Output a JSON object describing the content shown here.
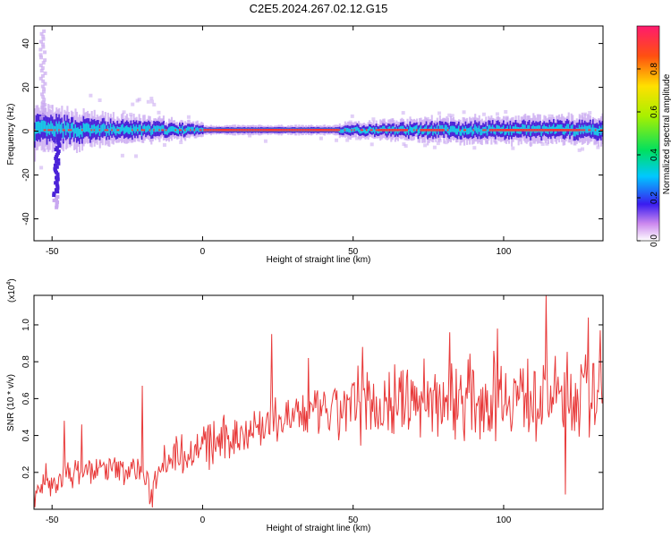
{
  "title": "C2E5.2024.267.02.12.G15",
  "chart_data": [
    {
      "type": "heatmap",
      "xlabel": "Height of straight line (km)",
      "ylabel": "Frequency (Hz)",
      "xlim": [
        -56,
        133
      ],
      "ylim": [
        -50,
        48
      ],
      "xticks": [
        -50,
        0,
        50,
        100
      ],
      "yticks": [
        -40,
        -20,
        0,
        20,
        40
      ],
      "colorbar": {
        "label": "Normalized spectral amplitude",
        "range": [
          0,
          1
        ],
        "ticks": [
          0.0,
          0.2,
          0.4,
          0.6,
          0.8
        ],
        "tick_labels": [
          "0.0",
          "0.2",
          "0.4",
          "0.6",
          "0.8"
        ]
      },
      "ridge": {
        "frequency_center": 0.5,
        "solid_from_x": 0,
        "solid_to_x": 45,
        "spread_before": [
          [
            -56,
            5
          ],
          [
            -45,
            4
          ],
          [
            -30,
            3
          ],
          [
            -15,
            2.5
          ],
          [
            0,
            1.5
          ]
        ],
        "spread_after": [
          [
            45,
            1.5
          ],
          [
            75,
            2.5
          ],
          [
            133,
            3
          ]
        ]
      },
      "tail": {
        "x_at_start": -48,
        "frequency_low": -35
      },
      "mark_colors": {
        "outer": "#c9a8f0",
        "mid": "#4a22d8",
        "inner": "#19c9e6",
        "core": "#ff3434"
      }
    },
    {
      "type": "line",
      "xlabel": "Height of straight line (km)",
      "ylabel": "SNR (10 * v/v)",
      "yscale_note": "(x10",
      "yscale_exp": "4",
      "yscale_close": ")",
      "xlim": [
        -56,
        133
      ],
      "ylim": [
        0.0,
        1.16
      ],
      "xticks": [
        -50,
        0,
        50,
        100
      ],
      "yticks": [
        0.2,
        0.4,
        0.6,
        0.8,
        1.0
      ],
      "ytick_labels": [
        "0.2",
        "0.4",
        "0.6",
        "0.8",
        "1.0"
      ],
      "line_color": "#e83a3a",
      "series": [
        {
          "trend_x": [
            -56,
            -45,
            -35,
            -20,
            -17,
            -14,
            -5,
            5,
            15,
            30,
            45,
            60,
            80,
            100,
            133
          ],
          "trend_y": [
            0.07,
            0.19,
            0.22,
            0.21,
            0.07,
            0.27,
            0.31,
            0.36,
            0.43,
            0.5,
            0.53,
            0.58,
            0.6,
            0.62,
            0.61
          ],
          "peaks_x": [
            -52,
            -46,
            -40,
            -20,
            23,
            35,
            53,
            82,
            98,
            114,
            128,
            132
          ],
          "peaks_y": [
            0.25,
            0.48,
            0.46,
            0.67,
            0.95,
            0.82,
            0.88,
            0.96,
            0.98,
            1.16,
            1.04,
            0.97
          ]
        }
      ]
    }
  ]
}
